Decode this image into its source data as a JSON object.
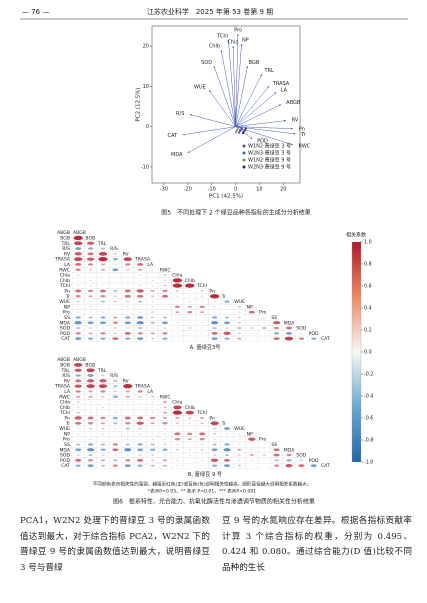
{
  "header": {
    "page": "— 76 —",
    "journal": "江苏农业科学　2025 年第 53 卷第 9 期"
  },
  "figure5": {
    "type": "biplot",
    "caption": "图5　不同处理下 2 个绿豆品种各指标的主成分分析结果",
    "xlabel": "PC1 (42.5%)",
    "ylabel": "PC2 (12.5%)",
    "xlim": [
      -35,
      27
    ],
    "ylim": [
      -14,
      25
    ],
    "xticks": [
      -30,
      -20,
      -10,
      0,
      10,
      20
    ],
    "yticks": [
      -10,
      0,
      10,
      20
    ],
    "arrow_color": "#4a5fc1",
    "loadings": [
      {
        "name": "Chlb",
        "x": -6,
        "y": 19
      },
      {
        "name": "TChl",
        "x": -3,
        "y": 21.5
      },
      {
        "name": "Chla",
        "x": -1,
        "y": 20
      },
      {
        "name": "Pro",
        "x": 1,
        "y": 23
      },
      {
        "name": "NP",
        "x": 2.5,
        "y": 20.5
      },
      {
        "name": "SOD",
        "x": -9,
        "y": 15
      },
      {
        "name": "WUE",
        "x": -11,
        "y": 9
      },
      {
        "name": "BGB",
        "x": 5,
        "y": 15
      },
      {
        "name": "TRL",
        "x": 11,
        "y": 13
      },
      {
        "name": "TRASA",
        "x": 14,
        "y": 10
      },
      {
        "name": "LA",
        "x": 17,
        "y": 8.5
      },
      {
        "name": "ABGB",
        "x": 19,
        "y": 5.5
      },
      {
        "name": "RV",
        "x": 21,
        "y": 1.5
      },
      {
        "name": "Pn",
        "x": 24,
        "y": -0.5
      },
      {
        "name": "Tr",
        "x": 25,
        "y": -1.8
      },
      {
        "name": "RWC",
        "x": 24,
        "y": -4.5
      },
      {
        "name": "POD",
        "x": 7,
        "y": -3
      },
      {
        "name": "R/S",
        "x": -19,
        "y": 3
      },
      {
        "name": "CAT",
        "x": -22,
        "y": -2
      },
      {
        "name": "MDA",
        "x": -20,
        "y": -6.5
      }
    ],
    "series": [
      {
        "name": "W1N2·晋绿豆 3 号",
        "color": "#7b3fa0",
        "x": [
          1.5,
          2.2,
          1.8
        ],
        "y": [
          -1.5,
          -0.8,
          -1.1
        ]
      },
      {
        "name": "W2N3·晋绿豆 3 号",
        "color": "#3b5bd1",
        "x": [
          2.8,
          3.4,
          2.5
        ],
        "y": [
          -0.6,
          -1.3,
          -0.2
        ]
      },
      {
        "name": "W1N2·晋绿豆 9 号",
        "color": "#6a9a3a",
        "x": [
          0.6,
          1.1,
          0.2
        ],
        "y": [
          -0.9,
          -0.3,
          -1.4
        ]
      },
      {
        "name": "W2N3·晋绿豆 9 号",
        "color": "#2b2b5a",
        "x": [
          3.8,
          4.3,
          3.2
        ],
        "y": [
          -1.0,
          -0.5,
          -1.6
        ]
      }
    ]
  },
  "figure6": {
    "type": "correlation",
    "caption": "图6　根系特性、光合能力、抗氧化酶活性与渗透调节物质的相关性分析结果",
    "notes": [
      "不同颜色表示相关性的强弱，越接近红色(正)或蓝色(负)说明相关性越高，圆形直径越大说明相关系数越大。",
      "*表示P<0.05，** 表示 P<0.01，*** 表示P<0.001"
    ],
    "legend_title": "相关系数",
    "scale_ticks": [
      {
        "value": 1,
        "label": "1.0"
      },
      {
        "value": 0.8,
        "label": "0.8"
      },
      {
        "value": 0.6,
        "label": "0.6"
      },
      {
        "value": 0.4,
        "label": "0.4"
      },
      {
        "value": 0.2,
        "label": "0.2"
      },
      {
        "value": 0,
        "label": "0.0"
      },
      {
        "value": -0.2,
        "label": "-0.2"
      },
      {
        "value": -0.4,
        "label": "-0.4"
      },
      {
        "value": -0.6,
        "label": "-0.6"
      },
      {
        "value": -0.8,
        "label": "-0.8"
      },
      {
        "value": -1,
        "label": "-1.0"
      }
    ],
    "variables": [
      "ABGB",
      "BGB",
      "TRL",
      "R/S",
      "RV",
      "TRASA",
      "LA",
      "RWC",
      "Chla",
      "Chlb",
      "TChl",
      "Pn",
      "Tr",
      "WUE",
      "NP",
      "Pro",
      "SS",
      "MDA",
      "SOD",
      "POD",
      "CAT"
    ],
    "panels": [
      {
        "label": "A. 晋绿豆3号",
        "matrix": [
          [],
          [
            0.9
          ],
          [
            0.8,
            0.7
          ],
          [
            -0.6,
            -0.5,
            -0.4
          ],
          [
            0.7,
            0.6,
            0.8,
            -0.3
          ],
          [
            0.8,
            0.7,
            0.9,
            -0.5,
            0.8
          ],
          [
            0.6,
            0.5,
            0.4,
            -0.2,
            0.5,
            0.6
          ],
          [
            0.5,
            0.3,
            0.4,
            -0.6,
            0.3,
            0.4,
            0.2
          ],
          [
            0.2,
            0.1,
            0,
            -0.1,
            0.1,
            0.2,
            0.1,
            0.3
          ],
          [
            0.1,
            0.2,
            0.1,
            0,
            0.1,
            0.1,
            0.2,
            0.2,
            0.9
          ],
          [
            0.2,
            0.1,
            0.1,
            -0.1,
            0.1,
            0.2,
            0.1,
            0.3,
            0.9,
            0.9
          ],
          [
            0.6,
            0.5,
            0.6,
            -0.4,
            0.6,
            0.7,
            0.4,
            0.5,
            0.3,
            0.2,
            0.3
          ],
          [
            0.5,
            0.4,
            0.5,
            -0.3,
            0.6,
            0.6,
            0.3,
            0.6,
            0.2,
            0.1,
            0.2,
            0.9
          ],
          [
            -0.3,
            -0.2,
            -0.4,
            0.3,
            -0.3,
            -0.4,
            -0.2,
            -0.1,
            0.1,
            0.2,
            0.1,
            -0.2,
            -0.5
          ],
          [
            0.1,
            0.2,
            0.1,
            0,
            0.2,
            0.1,
            0.2,
            0.1,
            0.5,
            0.4,
            0.5,
            0.2,
            0.1,
            0.3
          ],
          [
            0.2,
            0.1,
            0.2,
            -0.1,
            0.1,
            0.2,
            0.3,
            0.1,
            0.4,
            0.5,
            0.4,
            0.1,
            0,
            0.2,
            0.6
          ],
          [
            -0.5,
            -0.4,
            -0.5,
            0.4,
            -0.5,
            -0.6,
            -0.3,
            -0.4,
            -0.1,
            0,
            -0.1,
            -0.5,
            -0.4,
            0.3,
            0.1,
            0.2
          ],
          [
            -0.7,
            -0.6,
            -0.6,
            0.5,
            -0.6,
            -0.7,
            -0.4,
            -0.6,
            -0.2,
            -0.1,
            -0.2,
            -0.7,
            -0.6,
            0.3,
            -0.1,
            0,
            0.7
          ],
          [
            -0.4,
            -0.3,
            -0.2,
            0.3,
            -0.3,
            -0.4,
            -0.2,
            -0.3,
            0.2,
            0.3,
            0.2,
            -0.4,
            -0.3,
            0.4,
            0.3,
            0.4,
            0.5,
            0.6
          ],
          [
            0.5,
            0.4,
            0.5,
            -0.3,
            0.6,
            0.5,
            0.4,
            0.5,
            0.1,
            0,
            0.1,
            0.6,
            0.7,
            -0.3,
            0.1,
            0,
            -0.5,
            -0.6,
            -0.2
          ],
          [
            -0.6,
            -0.5,
            -0.5,
            0.6,
            -0.5,
            -0.6,
            -0.3,
            -0.5,
            -0.1,
            0,
            -0.1,
            -0.6,
            -0.5,
            0.4,
            0,
            0.1,
            0.6,
            0.8,
            0.5,
            -0.5
          ]
        ]
      },
      {
        "label": "B. 晋绿豆 9 号",
        "matrix": [
          [],
          [
            0.8
          ],
          [
            0.7,
            0.8
          ],
          [
            -0.5,
            -0.6,
            -0.3
          ],
          [
            0.6,
            0.7,
            0.7,
            -0.4
          ],
          [
            0.7,
            0.8,
            0.8,
            -0.4,
            0.9
          ],
          [
            0.5,
            0.4,
            0.5,
            -0.3,
            0.4,
            0.5
          ],
          [
            0.4,
            0.4,
            0.3,
            -0.5,
            0.4,
            0.3,
            0.3
          ],
          [
            0.3,
            0.2,
            0.1,
            -0.2,
            0.2,
            0.1,
            0.2,
            0.4
          ],
          [
            0.2,
            0.1,
            0.2,
            -0.1,
            0,
            0.1,
            0.1,
            0.3,
            0.8
          ],
          [
            0.3,
            0.2,
            0.1,
            -0.2,
            0.1,
            0.1,
            0.2,
            0.4,
            0.9,
            0.8
          ],
          [
            0.7,
            0.6,
            0.5,
            -0.5,
            0.6,
            0.6,
            0.5,
            0.4,
            0.4,
            0.3,
            0.4
          ],
          [
            0.6,
            0.5,
            0.4,
            -0.4,
            0.5,
            0.7,
            0.4,
            0.5,
            0.3,
            0.2,
            0.3,
            0.8
          ],
          [
            -0.2,
            -0.3,
            -0.3,
            0.2,
            -0.4,
            -0.3,
            -0.1,
            -0.2,
            0,
            0.1,
            0,
            -0.3,
            -0.6
          ],
          [
            0.2,
            0.1,
            0.2,
            -0.1,
            0.1,
            0.2,
            0.1,
            0.2,
            0.6,
            0.5,
            0.6,
            0.3,
            0.2,
            0.2
          ],
          [
            0.1,
            0.2,
            0.1,
            0,
            0.2,
            0.1,
            0.2,
            0.2,
            0.5,
            0.4,
            0.5,
            0.2,
            0.1,
            0.1,
            0.7
          ],
          [
            -0.4,
            -0.5,
            -0.4,
            0.5,
            -0.4,
            -0.5,
            -0.4,
            -0.3,
            -0.2,
            -0.1,
            -0.2,
            -0.4,
            -0.5,
            0.2,
            0,
            0.1
          ],
          [
            -0.6,
            -0.7,
            -0.5,
            0.6,
            -0.7,
            -0.6,
            -0.5,
            -0.5,
            -0.3,
            -0.2,
            -0.3,
            -0.6,
            -0.7,
            0.4,
            -0.2,
            -0.1,
            0.6
          ],
          [
            -0.3,
            -0.4,
            -0.3,
            0.2,
            -0.2,
            -0.3,
            -0.3,
            -0.2,
            0.1,
            0.2,
            0.1,
            -0.3,
            -0.4,
            0.3,
            0.4,
            0.3,
            0.6,
            0.5
          ],
          [
            0.6,
            0.5,
            0.4,
            -0.4,
            0.5,
            0.6,
            0.3,
            0.4,
            0.2,
            0.1,
            0.2,
            0.7,
            0.6,
            -0.2,
            0.2,
            0.1,
            -0.4,
            -0.5,
            -0.3
          ],
          [
            -0.5,
            -0.6,
            -0.4,
            0.5,
            -0.6,
            -0.5,
            -0.4,
            -0.4,
            -0.2,
            -0.1,
            -0.2,
            -0.5,
            -0.6,
            0.3,
            -0.1,
            0,
            0.5,
            0.7,
            0.6,
            -0.6
          ]
        ]
      }
    ]
  },
  "body": {
    "left": "PCA1，W2N2 处理下的晋绿豆 3 号的隶属函数值达到最大，对于综合指标 PCA2，W2N2 下的晋绿豆 9 号的隶属函数值达到最大，说明晋绿豆 3 号与晋绿",
    "right": "豆 9 号的水氮响应存在差异。根据各指标贡献率计算 3 个综合指标的权重，分别为 0.495、0.424 和 0.080。通过综合能力(D 值)比较不同品种的生长"
  }
}
